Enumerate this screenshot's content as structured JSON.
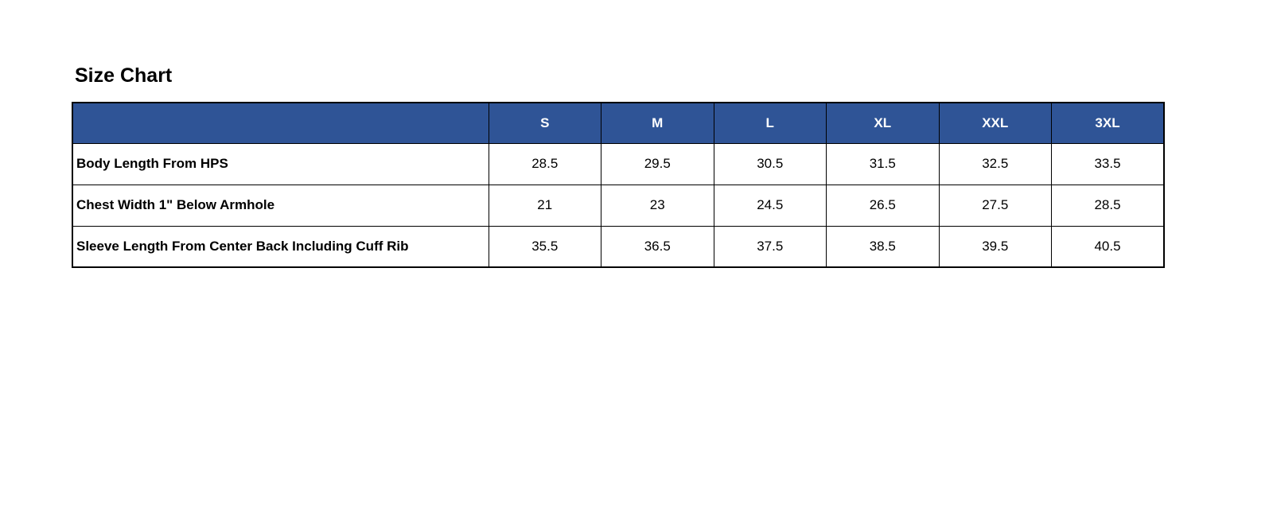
{
  "page": {
    "title": "Size Chart"
  },
  "table": {
    "corner_label": "",
    "columns": [
      "S",
      "M",
      "L",
      "XL",
      "XXL",
      "3XL"
    ],
    "rows": [
      {
        "label": "Body Length From HPS",
        "values": [
          "28.5",
          "29.5",
          "30.5",
          "31.5",
          "32.5",
          "33.5"
        ]
      },
      {
        "label": "Chest Width 1\" Below Armhole",
        "values": [
          "21",
          "23",
          "24.5",
          "26.5",
          "27.5",
          "28.5"
        ]
      },
      {
        "label": "Sleeve Length From Center Back Including Cuff Rib",
        "values": [
          "35.5",
          "36.5",
          "37.5",
          "38.5",
          "39.5",
          "40.5"
        ]
      }
    ],
    "colors": {
      "header_bg": "#2F5496",
      "header_text": "#FFFFFF",
      "border": "#000000",
      "body_text": "#000000"
    }
  },
  "chart_data": {
    "type": "table",
    "title": "Size Chart",
    "columns": [
      "S",
      "M",
      "L",
      "XL",
      "XXL",
      "3XL"
    ],
    "rows": [
      {
        "label": "Body Length From HPS",
        "values": [
          28.5,
          29.5,
          30.5,
          31.5,
          32.5,
          33.5
        ]
      },
      {
        "label": "Chest Width 1\" Below Armhole",
        "values": [
          21,
          23,
          24.5,
          26.5,
          27.5,
          28.5
        ]
      },
      {
        "label": "Sleeve Length From Center Back Including Cuff Rib",
        "values": [
          35.5,
          36.5,
          37.5,
          38.5,
          39.5,
          40.5
        ]
      }
    ]
  }
}
